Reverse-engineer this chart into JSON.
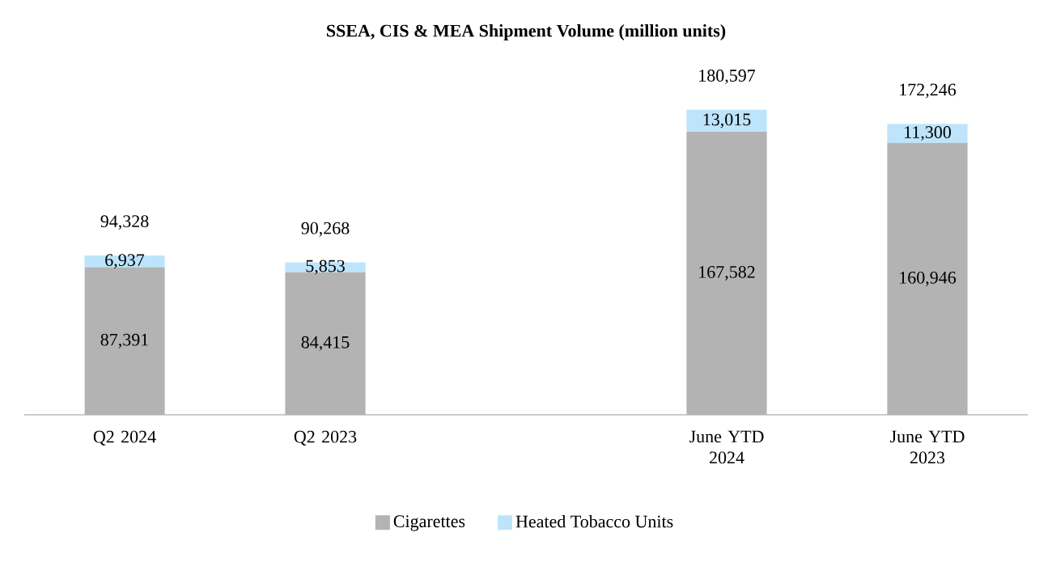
{
  "chart_data": {
    "type": "bar",
    "stacked": true,
    "title": "SSEA, CIS & MEA Shipment Volume (million units)",
    "categories": [
      "Q2 2024",
      "Q2 2023",
      null,
      "June YTD 2024",
      "June YTD 2023"
    ],
    "series": [
      {
        "name": "Cigarettes",
        "color": "#b3b3b3",
        "values": [
          87391,
          84415,
          null,
          167582,
          160946
        ],
        "value_labels": [
          "87,391",
          "84,415",
          null,
          "167,582",
          "160,946"
        ]
      },
      {
        "name": "Heated Tobacco Units",
        "color": "#bde4fb",
        "values": [
          6937,
          5853,
          null,
          13015,
          11300
        ],
        "value_labels": [
          "6,937",
          "5,853",
          null,
          "13,015",
          "11,300"
        ]
      }
    ],
    "totals": [
      "94,328",
      "90,268",
      null,
      "180,597",
      "172,246"
    ],
    "legend": "bottom"
  }
}
